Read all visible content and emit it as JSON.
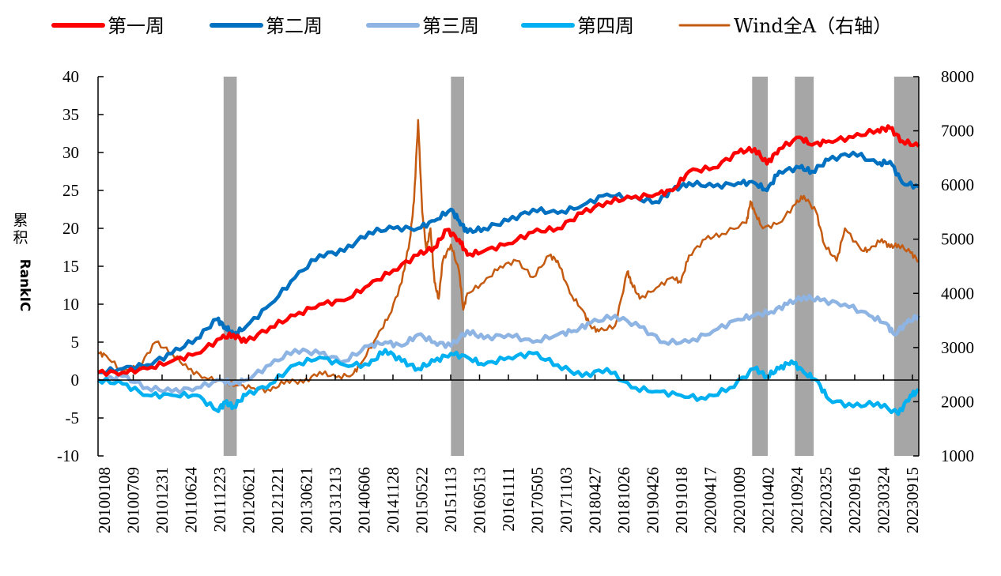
{
  "chart_data": {
    "type": "line",
    "title": "",
    "xlabel": "",
    "ylabel": "累积RankIC",
    "y2label": "",
    "legend_position": "top",
    "grid": false,
    "ylim": [
      -10,
      40
    ],
    "yticks": [
      "40",
      "35",
      "30",
      "25",
      "20",
      "15",
      "10",
      "5",
      "0",
      "-5",
      "-10"
    ],
    "ytick_values": [
      40,
      35,
      30,
      25,
      20,
      15,
      10,
      5,
      0,
      -5,
      -10
    ],
    "y2lim": [
      1000,
      8000
    ],
    "y2ticks": [
      "8000",
      "7000",
      "6000",
      "5000",
      "4000",
      "3000",
      "2000",
      "1000"
    ],
    "y2tick_values": [
      8000,
      7000,
      6000,
      5000,
      4000,
      3000,
      2000,
      1000
    ],
    "x_tick_labels": [
      "20100108",
      "20100709",
      "20101231",
      "20110624",
      "20111223",
      "20120621",
      "20121221",
      "20130621",
      "20131213",
      "20140606",
      "20141128",
      "20150522",
      "20151113",
      "20160513",
      "20161111",
      "20170505",
      "20171103",
      "20180427",
      "20181026",
      "20190426",
      "20191018",
      "20200417",
      "20201009",
      "20210402",
      "20210924",
      "20220325",
      "20220916",
      "20230324",
      "20230915"
    ],
    "shaded_periods": [
      {
        "from": 0.153,
        "to": 0.169
      },
      {
        "from": 0.43,
        "to": 0.446
      },
      {
        "from": 0.797,
        "to": 0.816
      },
      {
        "from": 0.849,
        "to": 0.872
      },
      {
        "from": 0.97,
        "to": 1.0
      }
    ],
    "shade_color": "#a6a6a6",
    "series": [
      {
        "name": "第一周",
        "axis": "left",
        "color": "#ff0000",
        "x": [
          0,
          0.03,
          0.06,
          0.09,
          0.12,
          0.15,
          0.165,
          0.18,
          0.21,
          0.24,
          0.27,
          0.3,
          0.33,
          0.36,
          0.39,
          0.41,
          0.425,
          0.44,
          0.45,
          0.47,
          0.5,
          0.53,
          0.56,
          0.59,
          0.62,
          0.65,
          0.68,
          0.7,
          0.72,
          0.75,
          0.78,
          0.8,
          0.815,
          0.83,
          0.855,
          0.87,
          0.89,
          0.92,
          0.95,
          0.965,
          0.98,
          1.0
        ],
        "values": [
          1,
          1,
          1.5,
          2.5,
          3.5,
          5.5,
          6,
          5,
          7,
          8.5,
          10,
          10.5,
          12.5,
          14.5,
          16.5,
          17.5,
          19.8,
          18.5,
          16.5,
          17,
          18,
          19.5,
          20,
          22,
          23.5,
          24,
          24.5,
          25,
          27.5,
          28,
          30,
          30.5,
          28.5,
          30.5,
          32,
          31,
          31.5,
          32,
          33,
          33.2,
          31.5,
          30.8
        ]
      },
      {
        "name": "第二周",
        "axis": "left",
        "color": "#0070c0",
        "x": [
          0,
          0.03,
          0.06,
          0.09,
          0.12,
          0.145,
          0.155,
          0.165,
          0.18,
          0.21,
          0.24,
          0.27,
          0.3,
          0.33,
          0.36,
          0.39,
          0.41,
          0.43,
          0.44,
          0.45,
          0.47,
          0.5,
          0.53,
          0.56,
          0.59,
          0.62,
          0.65,
          0.68,
          0.7,
          0.72,
          0.75,
          0.78,
          0.8,
          0.815,
          0.83,
          0.855,
          0.87,
          0.89,
          0.92,
          0.95,
          0.965,
          0.98,
          1.0
        ],
        "values": [
          1,
          1.5,
          2,
          3.5,
          5.5,
          8,
          7,
          6,
          7,
          10,
          13.5,
          16.5,
          17,
          19.5,
          20,
          20,
          21,
          22.5,
          21,
          19.5,
          20,
          21,
          22.5,
          22,
          23,
          24.5,
          24,
          23.5,
          25,
          26,
          25.5,
          26,
          26,
          25,
          27.5,
          28,
          27.5,
          29,
          30,
          28.5,
          28.8,
          26,
          25.5
        ]
      },
      {
        "name": "第三周",
        "axis": "left",
        "color": "#8eb4e3",
        "x": [
          0,
          0.03,
          0.06,
          0.09,
          0.12,
          0.15,
          0.165,
          0.18,
          0.21,
          0.24,
          0.27,
          0.3,
          0.33,
          0.35,
          0.37,
          0.39,
          0.41,
          0.43,
          0.45,
          0.47,
          0.5,
          0.53,
          0.56,
          0.58,
          0.6,
          0.63,
          0.66,
          0.69,
          0.72,
          0.75,
          0.78,
          0.8,
          0.82,
          0.84,
          0.86,
          0.88,
          0.91,
          0.94,
          0.96,
          0.97,
          0.985,
          1.0
        ],
        "values": [
          0,
          0.5,
          -1,
          -1.5,
          -1,
          0,
          -0.5,
          0,
          2,
          4,
          3.5,
          2.5,
          4.5,
          5,
          4.5,
          6,
          5,
          4.5,
          6.5,
          5.5,
          6,
          5,
          6,
          6.5,
          7.5,
          8.5,
          7,
          5,
          5,
          6.5,
          8,
          8.5,
          9,
          10,
          11,
          10.5,
          10,
          8.5,
          7.5,
          6,
          7.5,
          8.5
        ]
      },
      {
        "name": "第四周",
        "axis": "left",
        "color": "#00b0f0",
        "x": [
          0,
          0.03,
          0.06,
          0.09,
          0.12,
          0.145,
          0.155,
          0.165,
          0.18,
          0.21,
          0.24,
          0.27,
          0.3,
          0.33,
          0.35,
          0.37,
          0.39,
          0.41,
          0.43,
          0.45,
          0.47,
          0.5,
          0.53,
          0.56,
          0.59,
          0.62,
          0.65,
          0.68,
          0.71,
          0.74,
          0.77,
          0.8,
          0.815,
          0.83,
          0.845,
          0.86,
          0.875,
          0.89,
          0.92,
          0.95,
          0.975,
          0.99,
          1.0
        ],
        "values": [
          0,
          -0.5,
          -2,
          -2,
          -2,
          -4,
          -3,
          -3.5,
          -2,
          -0.5,
          2,
          3,
          2,
          2,
          4,
          2.5,
          1.5,
          2.5,
          3.5,
          3,
          2,
          3,
          3.5,
          2,
          0.5,
          1.5,
          -1,
          -1.5,
          -2,
          -2.5,
          -1,
          1.5,
          0.5,
          1.5,
          2.5,
          1,
          0,
          -2.5,
          -3.5,
          -3,
          -4.5,
          -2,
          -1.5
        ]
      },
      {
        "name": "Wind全A（右轴）",
        "axis": "right",
        "color": "#c55a11",
        "x": [
          0,
          0.01,
          0.03,
          0.05,
          0.07,
          0.09,
          0.11,
          0.13,
          0.155,
          0.17,
          0.19,
          0.21,
          0.23,
          0.25,
          0.27,
          0.29,
          0.31,
          0.32,
          0.34,
          0.355,
          0.37,
          0.38,
          0.385,
          0.39,
          0.395,
          0.4,
          0.405,
          0.41,
          0.415,
          0.42,
          0.43,
          0.44,
          0.445,
          0.45,
          0.47,
          0.49,
          0.51,
          0.53,
          0.55,
          0.56,
          0.575,
          0.59,
          0.6,
          0.61,
          0.63,
          0.645,
          0.65,
          0.66,
          0.68,
          0.7,
          0.71,
          0.72,
          0.74,
          0.76,
          0.79,
          0.795,
          0.8,
          0.81,
          0.83,
          0.85,
          0.86,
          0.875,
          0.885,
          0.9,
          0.91,
          0.93,
          0.94,
          0.955,
          0.965,
          0.975,
          0.99,
          1.0
        ],
        "values": [
          2900,
          2850,
          2550,
          2650,
          3100,
          2900,
          2600,
          2450,
          2350,
          2300,
          2250,
          2200,
          2400,
          2350,
          2550,
          2450,
          2500,
          2700,
          3200,
          3600,
          4200,
          5000,
          5700,
          7200,
          5500,
          4800,
          5200,
          4200,
          3900,
          4600,
          4900,
          4400,
          3700,
          4000,
          4200,
          4500,
          4600,
          4300,
          4700,
          4600,
          4000,
          3700,
          3400,
          3300,
          3400,
          4400,
          4200,
          3900,
          4100,
          4300,
          4200,
          4700,
          5000,
          5100,
          5300,
          5700,
          5500,
          5200,
          5300,
          5650,
          5800,
          5500,
          4900,
          4600,
          5200,
          4800,
          4800,
          5000,
          4850,
          4900,
          4750,
          4600
        ]
      }
    ]
  },
  "legend": {
    "items": [
      {
        "label": "第一周",
        "color": "#ff0000",
        "thick": true
      },
      {
        "label": "第二周",
        "color": "#0070c0",
        "thick": true
      },
      {
        "label": "第三周",
        "color": "#8eb4e3",
        "thick": true
      },
      {
        "label": "第四周",
        "color": "#00b0f0",
        "thick": true
      },
      {
        "label": "Wind全A（右轴）",
        "color": "#c55a11",
        "thick": false
      }
    ]
  }
}
